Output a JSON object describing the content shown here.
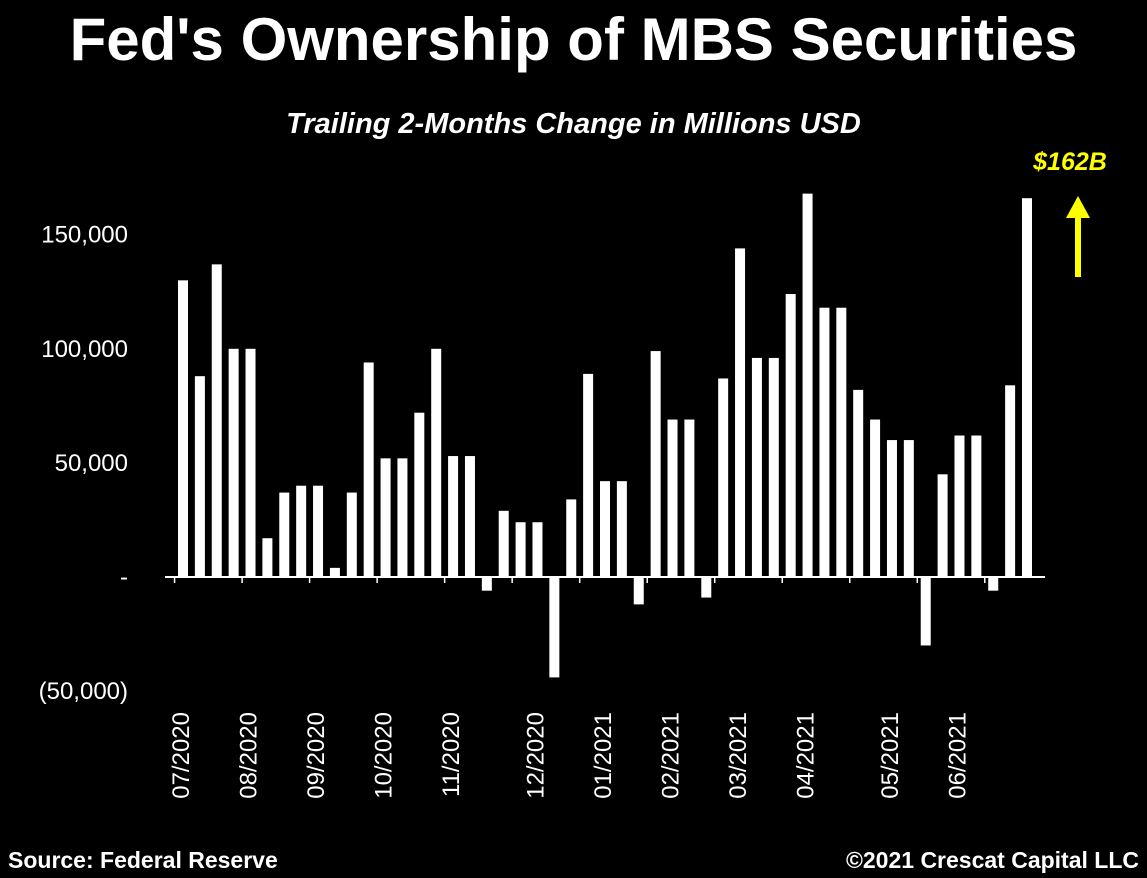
{
  "chart_data": {
    "type": "bar",
    "title": "Fed's Ownership of MBS Securities",
    "subtitle": "Trailing 2-Months Change in Millions USD",
    "ylim": [
      -50000,
      175000
    ],
    "yticks": [
      150000,
      100000,
      50000,
      0,
      -50000
    ],
    "ytick_labels": [
      "150,000",
      "100,000",
      "50,000",
      "-",
      "(50,000)"
    ],
    "xtick_labels": [
      "07/2020",
      "08/2020",
      "09/2020",
      "10/2020",
      "11/2020",
      "12/2020",
      "01/2021",
      "02/2021",
      "03/2021",
      "04/2021",
      "05/2021",
      "06/2021"
    ],
    "xtick_bar_index": [
      0,
      4,
      8,
      12,
      16,
      21,
      25,
      29,
      33,
      37,
      42,
      46
    ],
    "values": [
      130000,
      88000,
      137000,
      100000,
      100000,
      17000,
      37000,
      40000,
      40000,
      4000,
      37000,
      94000,
      52000,
      52000,
      72000,
      100000,
      53000,
      53000,
      -6000,
      29000,
      24000,
      24000,
      -44000,
      34000,
      89000,
      42000,
      42000,
      -12000,
      99000,
      69000,
      69000,
      -9000,
      87000,
      144000,
      96000,
      96000,
      124000,
      168000,
      118000,
      118000,
      82000,
      69000,
      60000,
      60000,
      -30000,
      45000,
      62000,
      62000,
      -6000,
      84000,
      166000
    ],
    "grid": false,
    "bar_color": "#ffffff",
    "annotation": {
      "text": "$162B",
      "color": "#ffff00"
    }
  },
  "footer": {
    "source": "Source: Federal Reserve",
    "copyright": "©2021 Crescat Capital LLC"
  }
}
